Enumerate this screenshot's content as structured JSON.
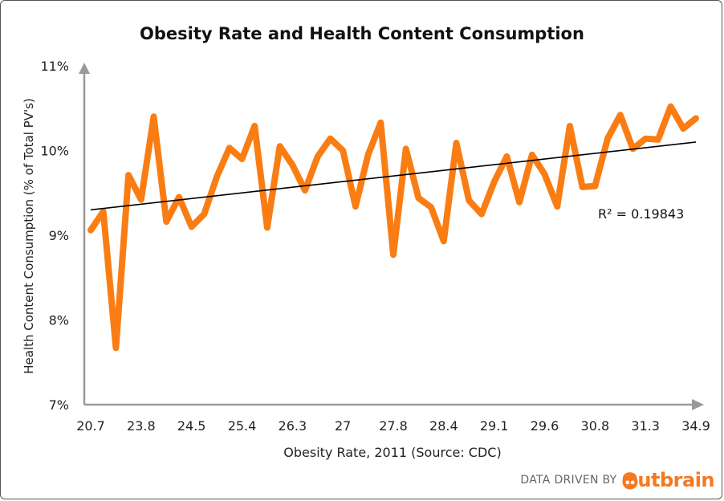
{
  "chart_data": {
    "type": "line",
    "title": "Obesity Rate and Health Content Consumption",
    "xlabel": "Obesity Rate, 2011 (Source: CDC)",
    "ylabel": "Health Content Consumption (% of Total PV's)",
    "ylim": [
      7,
      11
    ],
    "yticks": [
      "7%",
      "8%",
      "9%",
      "10%",
      "11%"
    ],
    "xtick_labels": [
      "20.7",
      "23.8",
      "24.5",
      "25.4",
      "26.3",
      "27",
      "27.8",
      "28.4",
      "29.1",
      "29.6",
      "30.8",
      "31.3",
      "34.9"
    ],
    "xtick_every": 4,
    "series": [
      {
        "name": "Health Content Consumption",
        "color": "#fa7d14",
        "values": [
          9.06,
          9.28,
          7.67,
          9.71,
          9.42,
          10.4,
          9.16,
          9.45,
          9.1,
          9.25,
          9.69,
          10.03,
          9.9,
          10.29,
          9.09,
          10.05,
          9.83,
          9.53,
          9.93,
          10.14,
          10.0,
          9.34,
          9.95,
          10.33,
          8.77,
          10.02,
          9.44,
          9.33,
          8.93,
          10.09,
          9.41,
          9.25,
          9.63,
          9.93,
          9.39,
          9.95,
          9.72,
          9.34,
          10.29,
          9.57,
          9.58,
          10.14,
          10.42,
          10.02,
          10.14,
          10.13,
          10.52,
          10.26,
          10.38
        ]
      }
    ],
    "trendline": {
      "type": "linear",
      "start": 9.3,
      "end": 10.1,
      "color": "#000000",
      "label": "R² = 0.19843"
    },
    "grid": false
  },
  "footer": {
    "prefix": "DATA DRIVEN BY",
    "brand": "Outbrain",
    "brand_text": "utbrain",
    "brand_color": "#f47920"
  }
}
